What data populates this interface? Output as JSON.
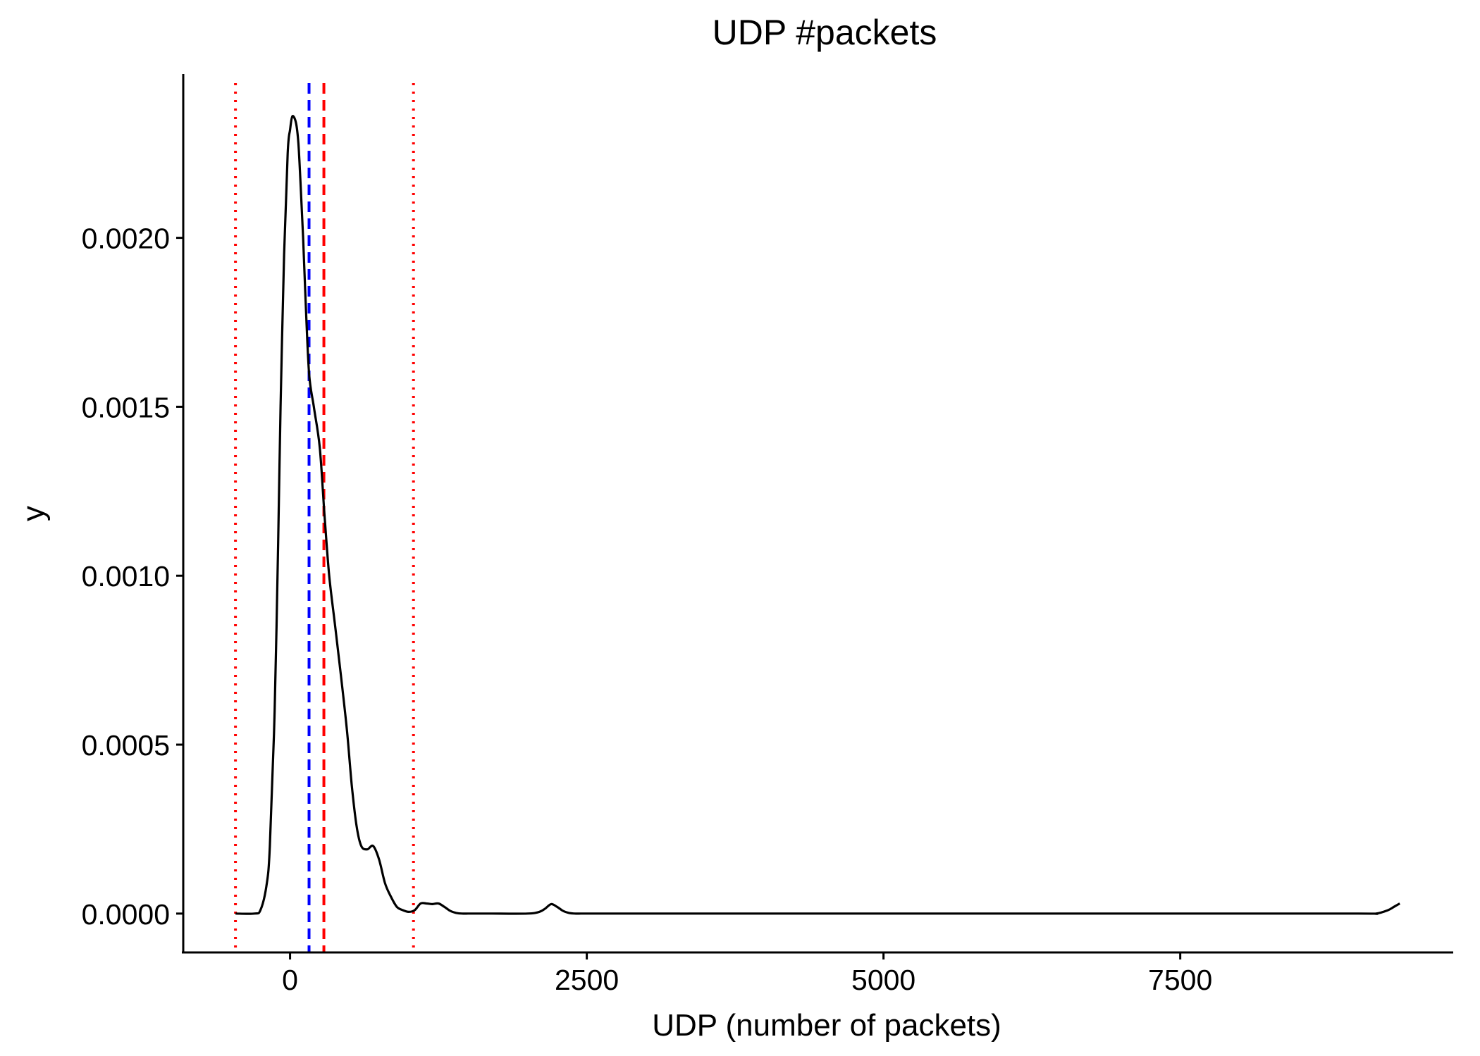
{
  "chart_data": {
    "type": "area",
    "title": "UDP #packets",
    "xlabel": "UDP (number of packets)",
    "ylabel": "y",
    "xlim": [
      -900,
      9800
    ],
    "ylim": [
      -0.000115,
      0.002485
    ],
    "x_ticks": [
      0,
      2500,
      5000,
      7500
    ],
    "x_tick_labels": [
      "0",
      "2500",
      "5000",
      "7500"
    ],
    "y_ticks": [
      0,
      0.0005,
      0.001,
      0.0015,
      0.002
    ],
    "y_tick_labels": [
      "0.0000",
      "0.0005",
      "0.0010",
      "0.0015",
      "0.0020"
    ],
    "grid": false,
    "series": [
      {
        "style": "solid",
        "color": "#000000",
        "x": [
          -460,
          -300,
          -250,
          -200,
          -170,
          -130,
          -100,
          -80,
          -50,
          -20,
          0,
          20,
          50,
          70,
          90,
          110,
          130,
          160,
          200,
          250,
          290,
          330,
          380,
          430,
          480,
          520,
          560,
          600,
          650,
          700,
          750,
          800,
          850,
          900,
          950,
          1000,
          1050,
          1100,
          1150,
          1200,
          1250,
          1300,
          1350,
          1400,
          1450,
          1500,
          1550,
          1600,
          1650,
          1700,
          2000,
          2100,
          2150,
          2200,
          2250,
          2300,
          2350,
          2400,
          2450,
          2500,
          3000,
          5000,
          7500,
          9000,
          9150,
          9250,
          9300,
          9350
        ],
        "y": [
          0,
          0,
          1e-05,
          8e-05,
          0.0002,
          0.0006,
          0.0011,
          0.0015,
          0.00195,
          0.00225,
          0.00232,
          0.00236,
          0.00234,
          0.00228,
          0.00215,
          0.002,
          0.00182,
          0.0016,
          0.0015,
          0.00138,
          0.00118,
          0.001,
          0.00085,
          0.0007,
          0.00054,
          0.00038,
          0.00026,
          0.0002,
          0.00019,
          0.0002,
          0.00016,
          9e-05,
          5e-05,
          2e-05,
          1e-05,
          5e-06,
          1e-05,
          3e-05,
          3e-05,
          2.8e-05,
          3e-05,
          2e-05,
          8e-06,
          2e-06,
          0,
          0,
          0,
          0,
          0,
          0,
          0,
          5e-06,
          1.5e-05,
          2.8e-05,
          2e-05,
          8e-06,
          2e-06,
          0,
          0,
          0,
          0,
          0,
          0,
          0,
          0,
          1e-05,
          2e-05,
          3e-05
        ]
      }
    ],
    "reference_lines": [
      {
        "x": -460,
        "color": "#ff0000",
        "style": "dotted"
      },
      {
        "x": 160,
        "color": "#0000ff",
        "style": "dashed"
      },
      {
        "x": 285,
        "color": "#ff0000",
        "style": "dashed"
      },
      {
        "x": 1040,
        "color": "#ff0000",
        "style": "dotted"
      }
    ]
  }
}
